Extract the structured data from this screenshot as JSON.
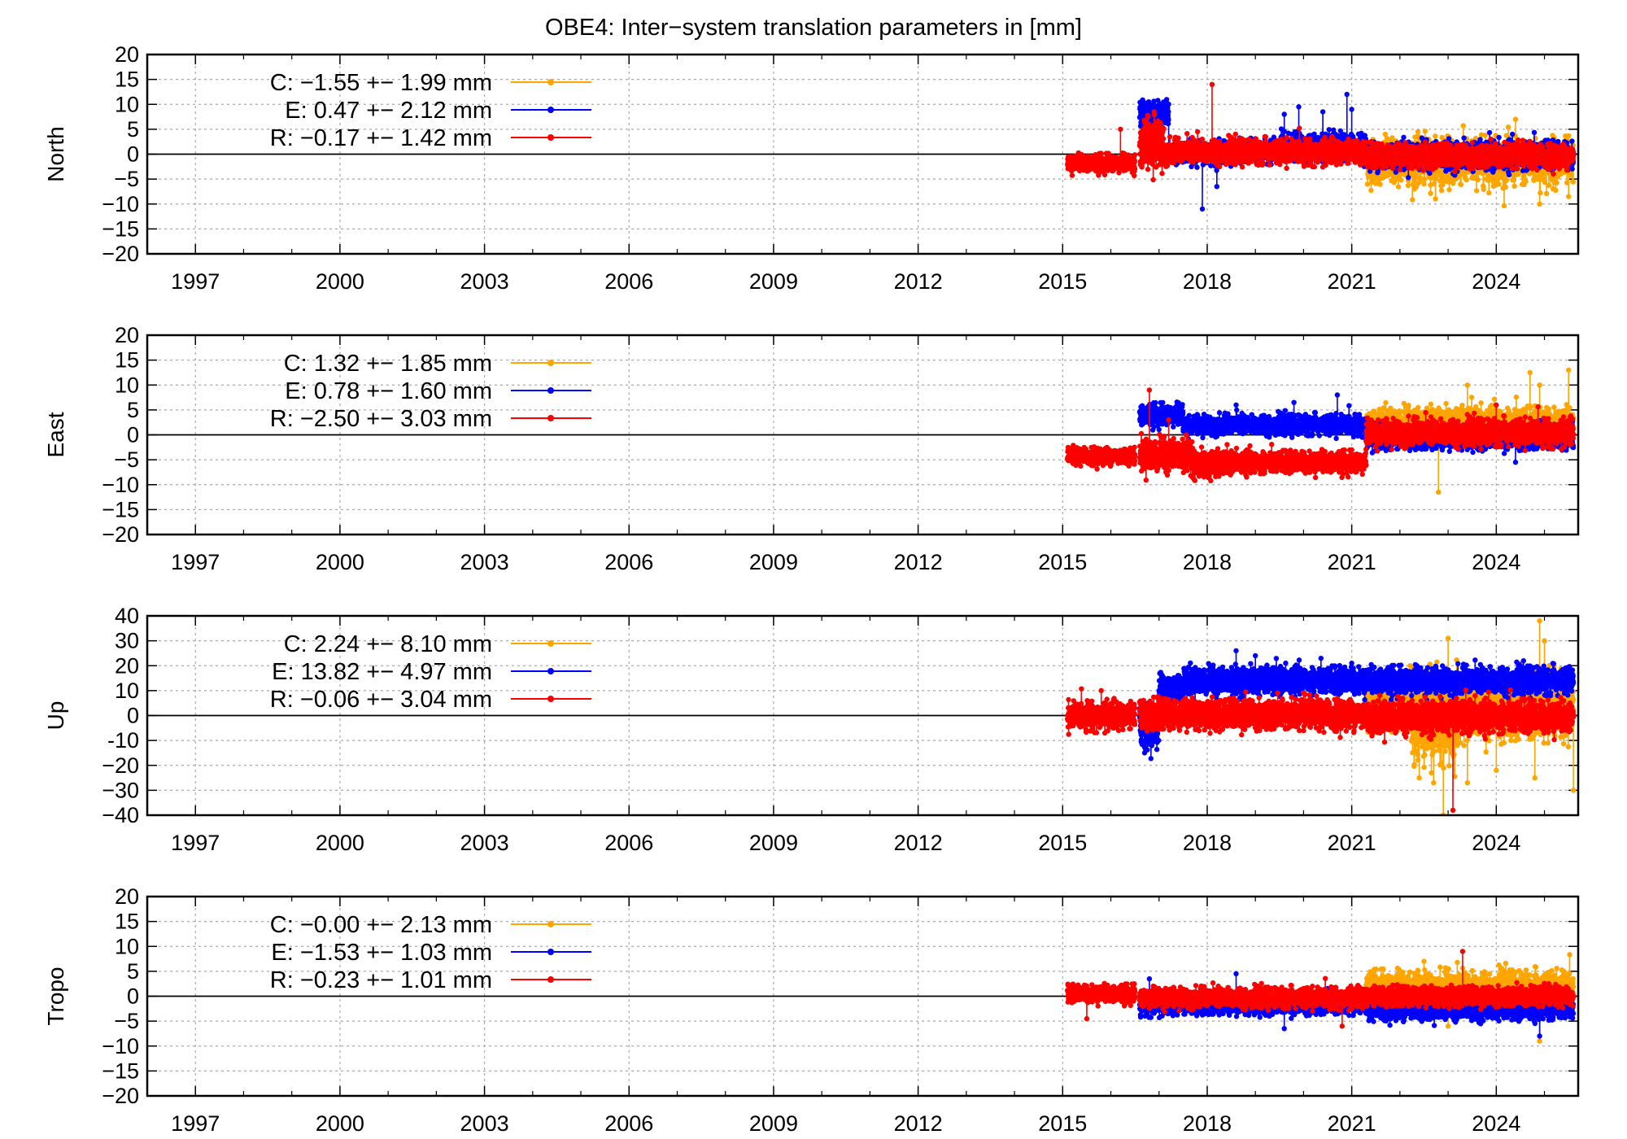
{
  "chart_data": {
    "title": "OBE4: Inter−system translation parameters in [mm]",
    "type": "scatter",
    "x_ticks": [
      "1997",
      "2000",
      "2003",
      "2006",
      "2009",
      "2012",
      "2015",
      "2018",
      "2021",
      "2024"
    ],
    "xlim": [
      1996.0,
      2025.7
    ],
    "grid": true,
    "legend_position": "top-left",
    "colors": {
      "C": "#ffa500",
      "E": "#0000ff",
      "R": "#ff0000",
      "zero_line": "#000000",
      "grid": "#aaaaaa"
    },
    "panels": [
      {
        "ylabel": "North",
        "ylim": [
          -20,
          20
        ],
        "y_ticks": [
          "20",
          "15",
          "10",
          "5",
          "0",
          "−5",
          "−10",
          "−15",
          "−20"
        ],
        "series": [
          {
            "key": "C",
            "legend": "C:  −1.55 +− 1.99 mm",
            "segments": [
              [
                2021.3,
                2025.6,
                -1.5,
                2.2
              ]
            ],
            "outliers": [
              [
                2024.4,
                7
              ],
              [
                2024.9,
                -10
              ],
              [
                2025.5,
                -8.5
              ],
              [
                2022.3,
                -7
              ]
            ]
          },
          {
            "key": "E",
            "legend": "E:  0.47 +− 2.12 mm",
            "segments": [
              [
                2016.6,
                2017.2,
                8,
                1.3
              ],
              [
                2017.2,
                2019.5,
                0.5,
                1.0
              ],
              [
                2019.5,
                2021.3,
                1.5,
                1.2
              ],
              [
                2021.3,
                2025.6,
                -0.3,
                1.3
              ]
            ],
            "outliers": [
              [
                2017.9,
                -11
              ],
              [
                2018.2,
                -6.5
              ],
              [
                2019.9,
                9.5
              ],
              [
                2020.9,
                12
              ],
              [
                2020.4,
                8.5
              ],
              [
                2021.0,
                9
              ],
              [
                2019.6,
                8
              ]
            ]
          },
          {
            "key": "R",
            "legend": "R:  −0.17 +− 1.42 mm",
            "segments": [
              [
                2015.1,
                2016.5,
                -1.8,
                0.8
              ],
              [
                2016.6,
                2017.1,
                2,
                2.5
              ],
              [
                2017.1,
                2021.3,
                0.5,
                1.1
              ],
              [
                2021.3,
                2025.6,
                -0.3,
                1.1
              ]
            ],
            "outliers": [
              [
                2018.1,
                14
              ],
              [
                2016.2,
                5
              ],
              [
                2017.8,
                4.5
              ],
              [
                2016.9,
                8.5
              ]
            ]
          }
        ]
      },
      {
        "ylabel": "East",
        "ylim": [
          -20,
          20
        ],
        "y_ticks": [
          "20",
          "15",
          "10",
          "5",
          "0",
          "−5",
          "−10",
          "−15",
          "−20"
        ],
        "series": [
          {
            "key": "C",
            "legend": "C:  1.32 +− 1.85 mm",
            "segments": [
              [
                2021.3,
                2025.6,
                2.2,
                1.5
              ]
            ],
            "outliers": [
              [
                2022.8,
                -11.5
              ],
              [
                2023.4,
                10
              ],
              [
                2024.7,
                12.5
              ],
              [
                2025.5,
                13
              ],
              [
                2024.9,
                10
              ]
            ]
          },
          {
            "key": "E",
            "legend": "E:  0.78 +− 1.60 mm",
            "segments": [
              [
                2016.6,
                2017.5,
                4,
                1.0
              ],
              [
                2017.5,
                2021.3,
                2,
                0.9
              ],
              [
                2021.3,
                2025.6,
                -0.5,
                1.1
              ]
            ],
            "outliers": [
              [
                2019.8,
                6.5
              ],
              [
                2020.7,
                8
              ],
              [
                2024.4,
                -5.5
              ],
              [
                2018.6,
                6
              ]
            ]
          },
          {
            "key": "R",
            "legend": "R:  −2.50 +− 3.03 mm",
            "segments": [
              [
                2015.1,
                2016.5,
                -4.2,
                0.8
              ],
              [
                2016.6,
                2017.7,
                -4,
                1.5
              ],
              [
                2017.7,
                2018.3,
                -6,
                1.3
              ],
              [
                2018.3,
                2021.3,
                -5.5,
                1.0
              ],
              [
                2021.3,
                2025.6,
                0.5,
                1.2
              ]
            ],
            "outliers": [
              [
                2016.8,
                9
              ],
              [
                2017.2,
                3
              ],
              [
                2024.0,
                6
              ]
            ]
          }
        ]
      },
      {
        "ylabel": "Up",
        "ylim": [
          -40,
          40
        ],
        "y_ticks": [
          "40",
          "30",
          "20",
          "10",
          "0",
          "-10",
          "−20",
          "−30",
          "−40"
        ],
        "series": [
          {
            "key": "C",
            "legend": "C:  2.24 +− 8.10 mm",
            "segments": [
              [
                2021.3,
                2022.2,
                3,
                4
              ],
              [
                2022.2,
                2023.2,
                0,
                9
              ],
              [
                2023.2,
                2025.6,
                3,
                6
              ]
            ],
            "outliers": [
              [
                2022.9,
                -40
              ],
              [
                2022.4,
                -25
              ],
              [
                2022.7,
                -27
              ],
              [
                2023.4,
                -27
              ],
              [
                2024.0,
                -22
              ],
              [
                2024.9,
                38
              ],
              [
                2023.0,
                31
              ],
              [
                2025.0,
                30
              ],
              [
                2025.6,
                -30
              ],
              [
                2024.8,
                -25
              ]
            ]
          },
          {
            "key": "E",
            "legend": "E:  13.82 +− 4.97 mm",
            "segments": [
              [
                2016.6,
                2017.0,
                -4,
                4
              ],
              [
                2017.0,
                2017.5,
                11,
                3
              ],
              [
                2017.5,
                2025.6,
                14,
                2.5
              ]
            ],
            "outliers": [
              [
                2016.7,
                -15
              ],
              [
                2018.6,
                26
              ],
              [
                2021.0,
                21
              ],
              [
                2019.0,
                24
              ]
            ]
          },
          {
            "key": "R",
            "legend": "R:  −0.06 +− 3.04 mm",
            "segments": [
              [
                2015.1,
                2016.5,
                0,
                2.5
              ],
              [
                2016.6,
                2021.3,
                0.5,
                2.8
              ],
              [
                2021.3,
                2025.6,
                -0.5,
                3
              ]
            ],
            "outliers": [
              [
                2023.1,
                -38
              ],
              [
                2018.8,
                9.5
              ],
              [
                2020.0,
                9
              ],
              [
                2015.8,
                10
              ]
            ]
          }
        ]
      },
      {
        "ylabel": "Tropo",
        "ylim": [
          -20,
          20
        ],
        "y_ticks": [
          "20",
          "15",
          "10",
          "5",
          "0",
          "−5",
          "−10",
          "−15",
          "−20"
        ],
        "series": [
          {
            "key": "C",
            "legend": "C:  −0.00 +− 2.13 mm",
            "segments": [
              [
                2021.3,
                2025.6,
                1.5,
                1.6
              ]
            ],
            "outliers": [
              [
                2022.5,
                7
              ],
              [
                2024.9,
                -9
              ],
              [
                2025.4,
                5
              ],
              [
                2023.0,
                -6
              ]
            ]
          },
          {
            "key": "E",
            "legend": "E:  −1.53 +− 1.03 mm",
            "segments": [
              [
                2016.6,
                2021.3,
                -1.5,
                1.0
              ],
              [
                2021.3,
                2025.6,
                -2.5,
                1.0
              ]
            ],
            "outliers": [
              [
                2018.6,
                4.5
              ],
              [
                2019.6,
                -6.5
              ],
              [
                2024.9,
                -8
              ],
              [
                2016.8,
                3.5
              ]
            ]
          },
          {
            "key": "R",
            "legend": "R:  −0.23 +− 1.01 mm",
            "segments": [
              [
                2015.1,
                2016.5,
                0.5,
                0.8
              ],
              [
                2016.6,
                2021.3,
                -0.3,
                0.9
              ],
              [
                2021.3,
                2025.6,
                0,
                0.9
              ]
            ],
            "outliers": [
              [
                2023.3,
                9
              ],
              [
                2015.5,
                -4.5
              ],
              [
                2020.8,
                -6
              ]
            ]
          }
        ]
      }
    ]
  }
}
